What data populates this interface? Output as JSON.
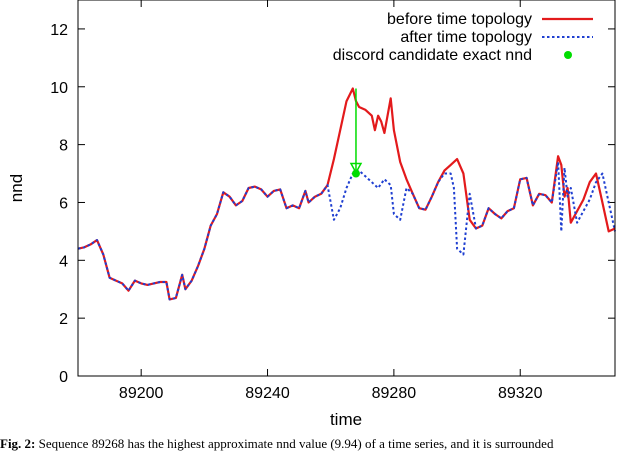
{
  "chart_data": {
    "type": "line",
    "xlabel": "time",
    "ylabel": "nnd",
    "xlim": [
      89180,
      89350
    ],
    "ylim": [
      0,
      13
    ],
    "xticks": [
      89200,
      89240,
      89280,
      89320
    ],
    "yticks": [
      0,
      2,
      4,
      6,
      8,
      10,
      12
    ],
    "grid": false,
    "legend_position": "top-right",
    "series": [
      {
        "name": "before time topology",
        "style": "solid",
        "color": "#e31a1c",
        "x": [
          89180,
          89182,
          89184,
          89186,
          89188,
          89190,
          89192,
          89194,
          89196,
          89198,
          89200,
          89202,
          89204,
          89206,
          89208,
          89209,
          89211,
          89213,
          89214,
          89216,
          89218,
          89220,
          89222,
          89224,
          89226,
          89228,
          89230,
          89232,
          89234,
          89236,
          89238,
          89240,
          89242,
          89244,
          89246,
          89248,
          89250,
          89252,
          89253,
          89255,
          89257,
          89259,
          89261,
          89263,
          89265,
          89267,
          89268,
          89269,
          89271,
          89273,
          89274,
          89275,
          89276,
          89277,
          89279,
          89280,
          89282,
          89284,
          89286,
          89288,
          89290,
          89292,
          89294,
          89296,
          89298,
          89300,
          89302,
          89304,
          89306,
          89308,
          89310,
          89312,
          89314,
          89316,
          89318,
          89320,
          89322,
          89324,
          89326,
          89328,
          89330,
          89332,
          89333,
          89334,
          89335,
          89336,
          89338,
          89340,
          89342,
          89344,
          89346,
          89348,
          89350
        ],
        "y": [
          4.4,
          4.45,
          4.55,
          4.7,
          4.2,
          3.4,
          3.3,
          3.2,
          2.95,
          3.3,
          3.2,
          3.15,
          3.2,
          3.25,
          3.25,
          2.65,
          2.7,
          3.5,
          3.0,
          3.3,
          3.8,
          4.4,
          5.2,
          5.6,
          6.35,
          6.2,
          5.9,
          6.05,
          6.5,
          6.55,
          6.45,
          6.2,
          6.4,
          6.45,
          5.8,
          5.9,
          5.8,
          6.4,
          6.0,
          6.2,
          6.3,
          6.6,
          7.5,
          8.5,
          9.5,
          9.94,
          9.5,
          9.3,
          9.2,
          9.0,
          8.5,
          9.0,
          8.8,
          8.4,
          9.6,
          8.5,
          7.4,
          6.8,
          6.3,
          5.8,
          5.75,
          6.2,
          6.7,
          7.1,
          7.3,
          7.5,
          7.0,
          5.4,
          5.1,
          5.2,
          5.8,
          5.6,
          5.45,
          5.7,
          5.8,
          6.8,
          6.85,
          5.9,
          6.3,
          6.25,
          6.0,
          7.6,
          7.3,
          6.2,
          6.5,
          5.3,
          5.7,
          6.1,
          6.7,
          7.0,
          6.0,
          5.0,
          5.1
        ]
      },
      {
        "name": "after time topology",
        "style": "dotted",
        "color": "#1f3fd1",
        "x": [
          89180,
          89182,
          89184,
          89186,
          89188,
          89190,
          89192,
          89194,
          89196,
          89198,
          89200,
          89202,
          89204,
          89206,
          89208,
          89209,
          89211,
          89213,
          89214,
          89216,
          89218,
          89220,
          89222,
          89224,
          89226,
          89228,
          89230,
          89232,
          89234,
          89236,
          89238,
          89240,
          89242,
          89244,
          89246,
          89248,
          89250,
          89252,
          89253,
          89255,
          89257,
          89259,
          89261,
          89263,
          89265,
          89267,
          89269,
          89271,
          89273,
          89275,
          89277,
          89279,
          89280,
          89282,
          89284,
          89286,
          89288,
          89290,
          89292,
          89294,
          89296,
          89298,
          89299,
          89300,
          89302,
          89304,
          89306,
          89308,
          89310,
          89312,
          89314,
          89316,
          89318,
          89320,
          89322,
          89324,
          89326,
          89328,
          89330,
          89332,
          89333,
          89334,
          89335,
          89336,
          89338,
          89340,
          89342,
          89344,
          89346,
          89348,
          89350
        ],
        "y": [
          4.4,
          4.45,
          4.55,
          4.7,
          4.2,
          3.4,
          3.3,
          3.2,
          2.95,
          3.3,
          3.2,
          3.15,
          3.2,
          3.25,
          3.25,
          2.65,
          2.7,
          3.5,
          3.0,
          3.3,
          3.8,
          4.4,
          5.2,
          5.6,
          6.35,
          6.2,
          5.9,
          6.05,
          6.5,
          6.55,
          6.45,
          6.2,
          6.4,
          6.45,
          5.8,
          5.9,
          5.8,
          6.4,
          6.0,
          6.2,
          6.3,
          6.6,
          5.4,
          5.8,
          6.5,
          7.0,
          7.1,
          6.9,
          6.7,
          6.5,
          6.8,
          6.6,
          5.6,
          5.4,
          6.5,
          6.3,
          5.8,
          5.75,
          6.2,
          6.7,
          7.0,
          7.0,
          6.5,
          4.4,
          4.2,
          6.3,
          5.1,
          5.2,
          5.8,
          5.6,
          5.45,
          5.7,
          5.8,
          6.8,
          6.85,
          5.9,
          6.3,
          6.25,
          6.0,
          7.4,
          5.0,
          7.2,
          6.2,
          6.5,
          5.3,
          5.7,
          6.1,
          6.7,
          7.0,
          6.0,
          5.0
        ]
      }
    ],
    "discord_candidate": {
      "name": "discord candidate exact nnd",
      "x": 89268,
      "y": 7.0,
      "from_y": 9.94,
      "color": "#00dd00"
    }
  },
  "caption": {
    "label": "Fig. 2:",
    "text": "Sequence 89268 has the highest approximate nnd value (9.94) of a time series, and it is surrounded"
  }
}
